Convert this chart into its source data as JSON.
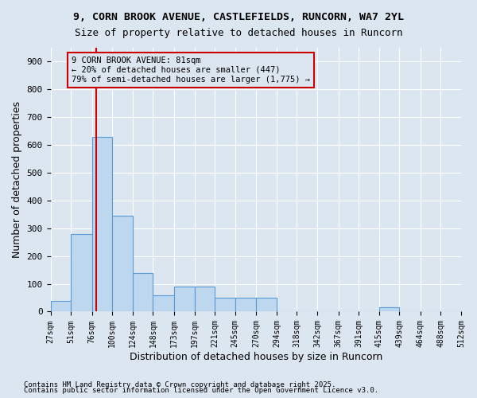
{
  "title_line1": "9, CORN BROOK AVENUE, CASTLEFIELDS, RUNCORN, WA7 2YL",
  "title_line2": "Size of property relative to detached houses in Runcorn",
  "xlabel": "Distribution of detached houses by size in Runcorn",
  "ylabel": "Number of detached properties",
  "footnote1": "Contains HM Land Registry data © Crown copyright and database right 2025.",
  "footnote2": "Contains public sector information licensed under the Open Government Licence v3.0.",
  "property_size": 81,
  "annotation_line1": "9 CORN BROOK AVENUE: 81sqm",
  "annotation_line2": "← 20% of detached houses are smaller (447)",
  "annotation_line3": "79% of semi-detached houses are larger (1,775) →",
  "bar_edges": [
    27,
    51,
    76,
    100,
    124,
    148,
    173,
    197,
    221,
    245,
    270,
    294,
    318,
    342,
    367,
    391,
    415,
    439,
    464,
    488,
    512
  ],
  "bar_heights": [
    40,
    280,
    630,
    345,
    140,
    60,
    90,
    90,
    50,
    50,
    50,
    0,
    0,
    0,
    0,
    0,
    15,
    0,
    0,
    0
  ],
  "bar_color": "#bdd7ee",
  "bar_edge_color": "#5b9bd5",
  "vline_color": "#cc0000",
  "annotation_box_color": "#cc0000",
  "background_color": "#dce6f1",
  "ylim": [
    0,
    950
  ],
  "yticks": [
    0,
    100,
    200,
    300,
    400,
    500,
    600,
    700,
    800,
    900
  ]
}
